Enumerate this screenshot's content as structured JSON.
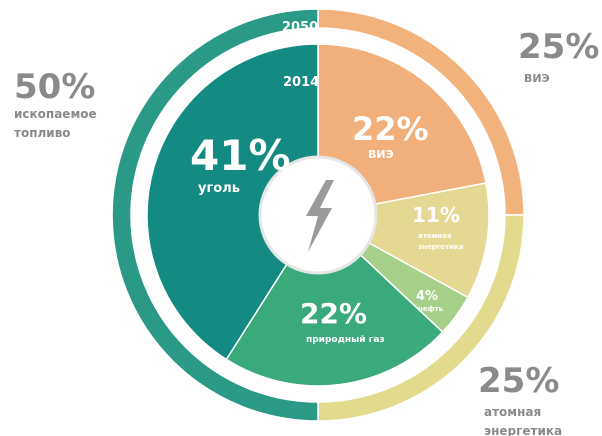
{
  "chart_data": {
    "type": "pie",
    "series": [
      {
        "name": "2050",
        "categories": [
          "ВИЭ",
          "атомная энергетика",
          "ископаемое топливо"
        ],
        "values": [
          25,
          25,
          50
        ],
        "value_labels": [
          "25%",
          "25%",
          "50%"
        ],
        "colors": [
          "#f2b27c",
          "#e2da8c",
          "#2a9a86"
        ]
      },
      {
        "name": "2014",
        "categories": [
          "ВИЭ",
          "атомная энергетика",
          "нефть",
          "природный газ",
          "уголь"
        ],
        "values": [
          22,
          11,
          4,
          22,
          41
        ],
        "value_labels": [
          "22%",
          "11%",
          "4%",
          "22%",
          "41%"
        ],
        "colors": [
          "#f1b07b",
          "#e4d893",
          "#a6d08a",
          "#3aa97b",
          "#138a82"
        ]
      }
    ]
  }
}
